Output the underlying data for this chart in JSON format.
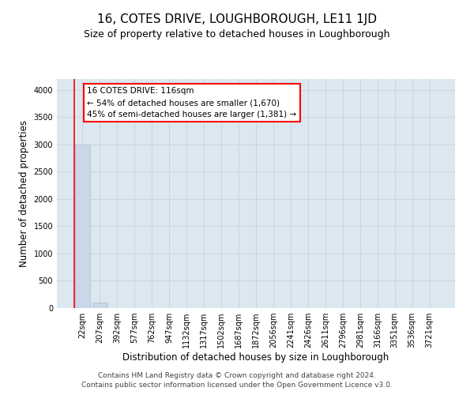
{
  "title": "16, COTES DRIVE, LOUGHBOROUGH, LE11 1JD",
  "subtitle": "Size of property relative to detached houses in Loughborough",
  "xlabel": "Distribution of detached houses by size in Loughborough",
  "ylabel": "Number of detached properties",
  "bar_labels": [
    "22sqm",
    "207sqm",
    "392sqm",
    "577sqm",
    "762sqm",
    "947sqm",
    "1132sqm",
    "1317sqm",
    "1502sqm",
    "1687sqm",
    "1872sqm",
    "2056sqm",
    "2241sqm",
    "2426sqm",
    "2611sqm",
    "2796sqm",
    "2981sqm",
    "3166sqm",
    "3351sqm",
    "3536sqm",
    "3721sqm"
  ],
  "bar_values": [
    3000,
    100,
    2,
    1,
    0,
    0,
    0,
    0,
    0,
    0,
    0,
    0,
    0,
    0,
    0,
    0,
    0,
    0,
    0,
    0,
    0
  ],
  "bar_color": "#c8d8e8",
  "bar_edge_color": "#a8bece",
  "grid_color": "#c8d0dc",
  "background_color": "#dce8f0",
  "annotation_line1": "16 COTES DRIVE: 116sqm",
  "annotation_line2": "← 54% of detached houses are smaller (1,670)",
  "annotation_line3": "45% of semi-detached houses are larger (1,381) →",
  "annotation_box_color": "white",
  "annotation_box_edge_color": "red",
  "vline_color": "red",
  "ylim": [
    0,
    4200
  ],
  "yticks": [
    0,
    500,
    1000,
    1500,
    2000,
    2500,
    3000,
    3500,
    4000
  ],
  "footer_line1": "Contains HM Land Registry data © Crown copyright and database right 2024.",
  "footer_line2": "Contains public sector information licensed under the Open Government Licence v3.0.",
  "title_fontsize": 11,
  "subtitle_fontsize": 9,
  "xlabel_fontsize": 8.5,
  "ylabel_fontsize": 8.5,
  "tick_fontsize": 7,
  "footer_fontsize": 6.5,
  "annotation_fontsize": 7.5
}
